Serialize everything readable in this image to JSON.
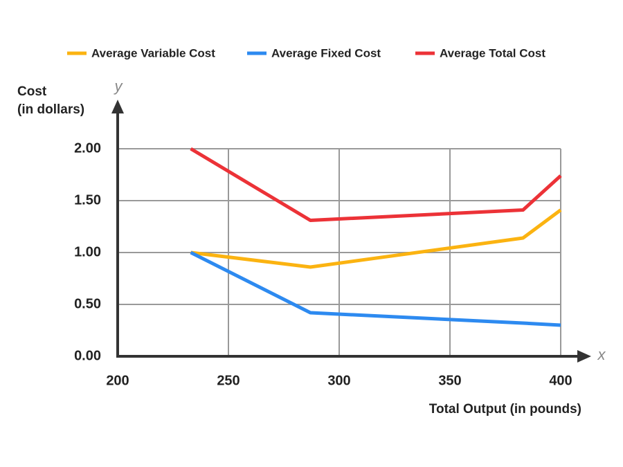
{
  "chart_data": {
    "type": "line",
    "ylabel": [
      "Cost",
      "(in dollars)"
    ],
    "xlabel": "Total Output (in pounds)",
    "x_symbol": "x",
    "y_symbol": "y",
    "x": [
      233,
      287,
      383,
      400
    ],
    "series": [
      {
        "name": "Average Variable Cost",
        "color": "#fbb311",
        "values": [
          1.0,
          0.86,
          1.14,
          1.41
        ]
      },
      {
        "name": "Average Fixed Cost",
        "color": "#2d8af0",
        "values": [
          1.0,
          0.42,
          0.32,
          0.3
        ]
      },
      {
        "name": "Average Total Cost",
        "color": "#ec3237",
        "values": [
          2.0,
          1.31,
          1.41,
          1.74
        ]
      }
    ],
    "xlim": [
      200,
      400
    ],
    "xticks": [
      200,
      250,
      300,
      350,
      400
    ],
    "ylim": [
      0,
      2
    ],
    "yticks": [
      {
        "value": 0,
        "label": "0.00"
      },
      {
        "value": 0.5,
        "label": "0.50"
      },
      {
        "value": 1,
        "label": "1.00"
      },
      {
        "value": 1.5,
        "label": "1.50"
      },
      {
        "value": 2,
        "label": "2.00"
      }
    ],
    "grid": true
  }
}
